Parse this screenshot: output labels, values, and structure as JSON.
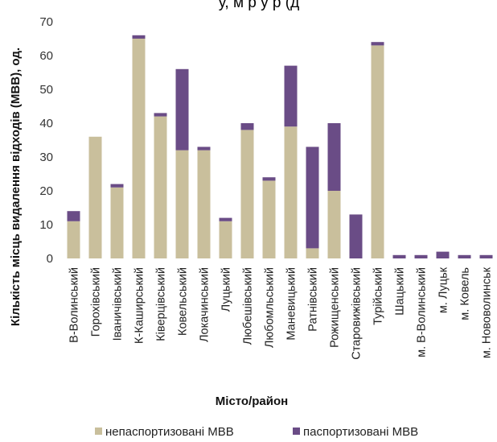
{
  "chart_data": {
    "type": "bar",
    "stacked": true,
    "title": "у, м         р          у р         (д",
    "xlabel": "Місто/район",
    "ylabel": "Кількість місць видалення відходів (МВВ), од.",
    "ylim": [
      0,
      70
    ],
    "yticks": [
      0,
      10,
      20,
      30,
      40,
      50,
      60,
      70
    ],
    "grid": false,
    "legend_position": "bottom",
    "categories": [
      "В-Волинський",
      "Горохівський",
      "Іваничівський",
      "К-Каширський",
      "Ківерцівський",
      "Ковельський",
      "Локачинський",
      "Луцький",
      "Любешівський",
      "Любомльський",
      "Маневицький",
      "Ратнівський",
      "Рожищенський",
      "Старовижівський",
      "Турійський",
      "Шацький",
      "м. В-Волинський",
      "м. Луцьк",
      "м. Ковель",
      "м. Нововолинськ"
    ],
    "series": [
      {
        "name": "непаспортизовані МВВ",
        "color": "#c9bf9c",
        "values": [
          11,
          36,
          21,
          65,
          42,
          32,
          32,
          11,
          38,
          23,
          39,
          3,
          20,
          0,
          63,
          0,
          0,
          0,
          0,
          0
        ]
      },
      {
        "name": "паспортизовані МВВ",
        "color": "#6a4c86",
        "values": [
          3,
          0,
          1,
          1,
          1,
          24,
          1,
          1,
          2,
          1,
          18,
          30,
          20,
          13,
          1,
          1,
          1,
          2,
          1,
          1
        ]
      }
    ]
  }
}
